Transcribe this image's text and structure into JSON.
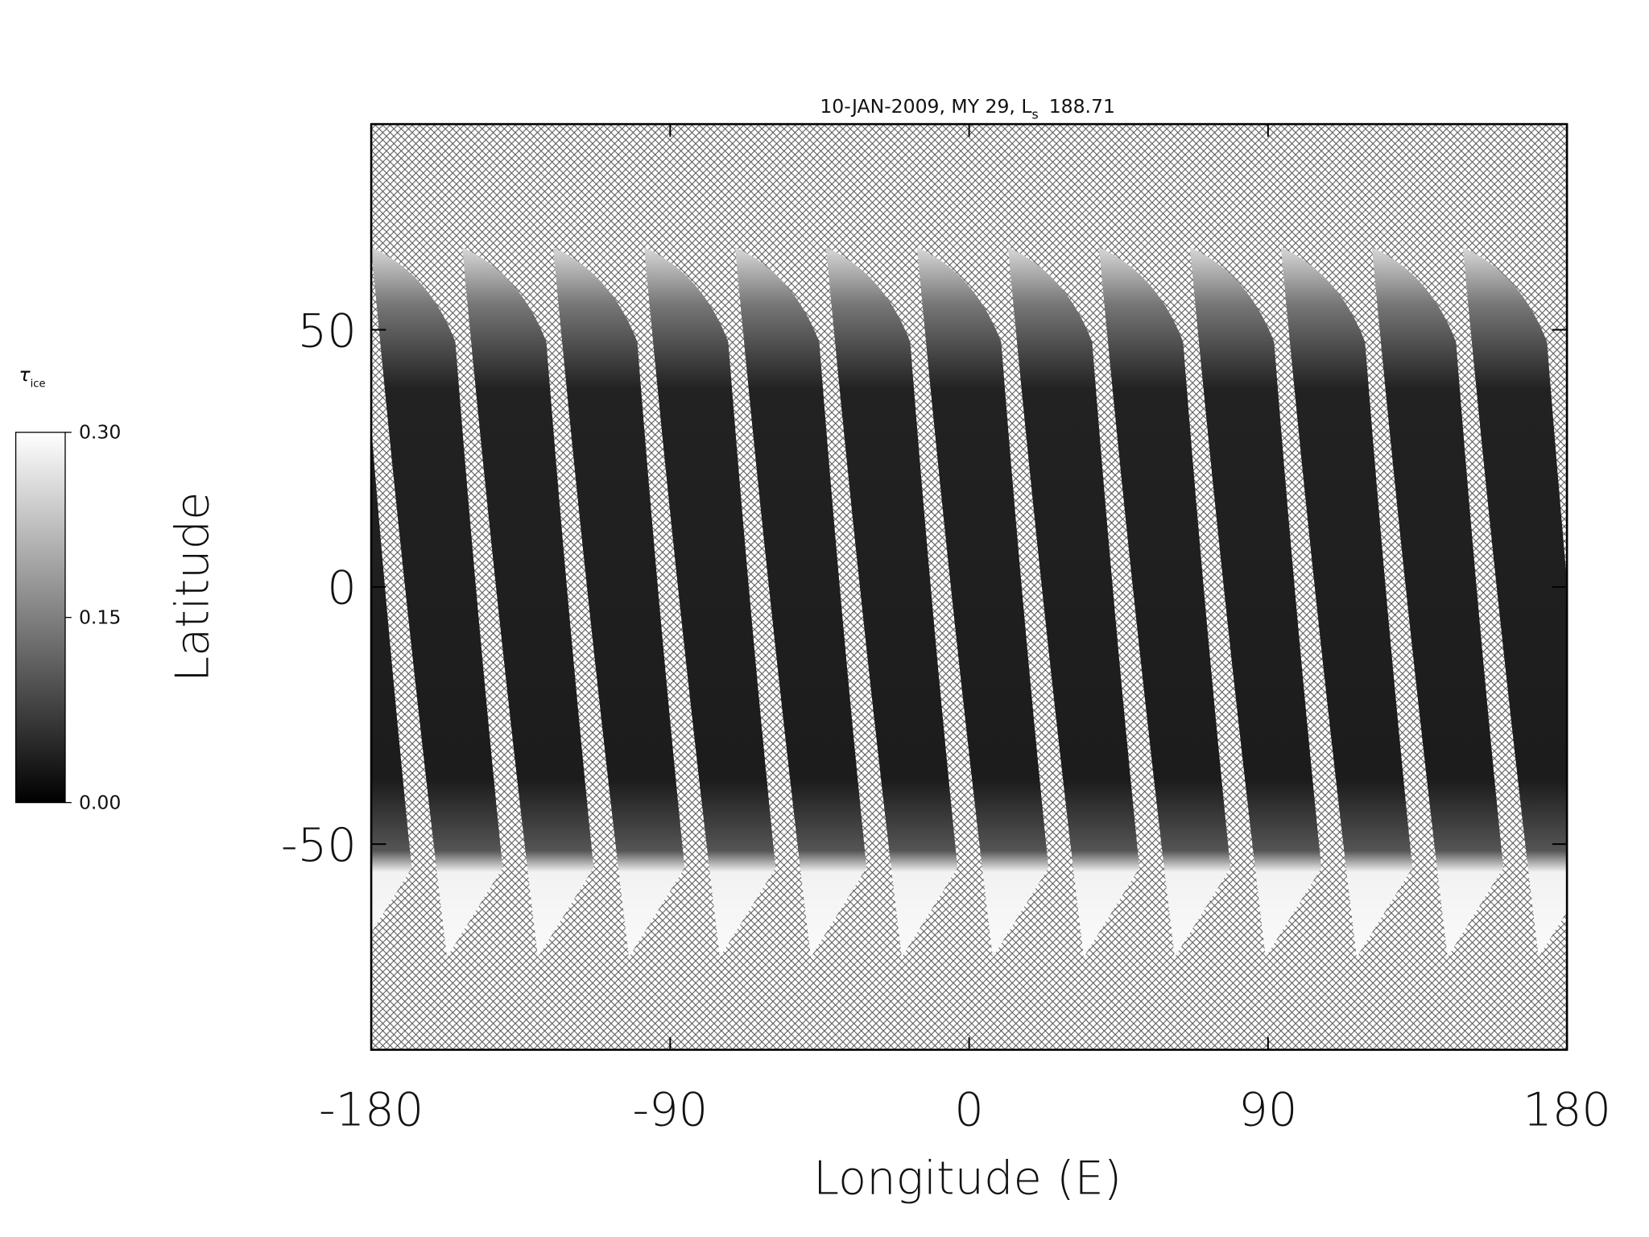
{
  "chart_data": {
    "type": "swath-map",
    "title": "10-JAN-2009, MY 29,",
    "title_symbol": "L",
    "title_subscript": "s",
    "title_value": "188.71",
    "x_label": "Longitude (E)",
    "y_label": "Latitude",
    "xlim": [
      -180,
      180
    ],
    "ylim": [
      -90,
      90
    ],
    "xticks": [
      -180,
      -90,
      0,
      90,
      180
    ],
    "yticks": [
      -50,
      0,
      50
    ],
    "colorbar": {
      "symbol": "τ",
      "subscript": "ice",
      "range": [
        0,
        0.3
      ],
      "ticks": [
        {
          "value": 0,
          "label": "0.00"
        },
        {
          "value": 0.15,
          "label": "0.15"
        },
        {
          "value": 0.3,
          "label": "0.30"
        }
      ]
    }
  }
}
